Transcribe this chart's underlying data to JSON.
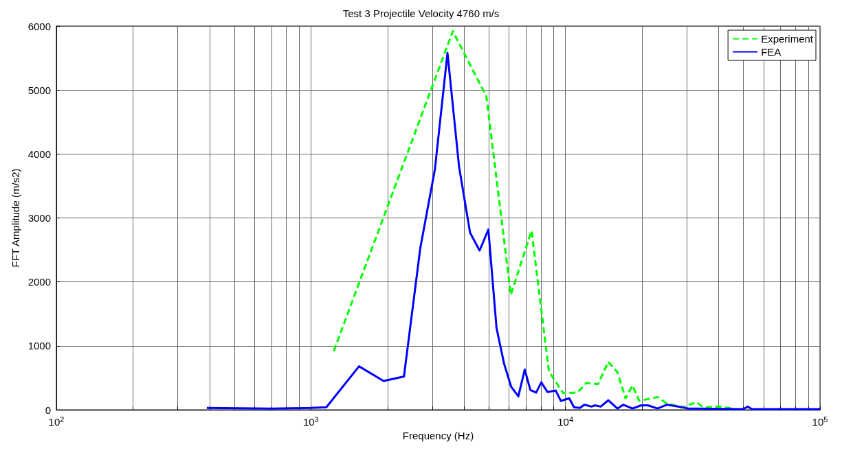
{
  "chart_data": {
    "type": "line",
    "title": "Test 3 Projectile Velocity 4760 m/s",
    "xlabel": "Frequency (Hz)",
    "ylabel": "FFT Amplitude (m/s2)",
    "log": "x",
    "grid": true,
    "legend": "top right",
    "marker": "none",
    "xlim": [
      100,
      100000
    ],
    "ylim": [
      0,
      6000
    ],
    "xticks": [
      {
        "value": 100,
        "label": "10$^{2}$"
      },
      {
        "value": 200,
        "label": null
      },
      {
        "value": 300,
        "label": null
      },
      {
        "value": 400,
        "label": null
      },
      {
        "value": 500,
        "label": null
      },
      {
        "value": 600,
        "label": null
      },
      {
        "value": 700,
        "label": null
      },
      {
        "value": 800,
        "label": null
      },
      {
        "value": 900,
        "label": null
      },
      {
        "value": 1000,
        "label": "10$^{3}$"
      },
      {
        "value": 2000,
        "label": null
      },
      {
        "value": 3000,
        "label": null
      },
      {
        "value": 4000,
        "label": null
      },
      {
        "value": 5000,
        "label": null
      },
      {
        "value": 6000,
        "label": null
      },
      {
        "value": 7000,
        "label": null
      },
      {
        "value": 8000,
        "label": null
      },
      {
        "value": 9000,
        "label": null
      },
      {
        "value": 10000,
        "label": "10$^{4}$"
      },
      {
        "value": 20000,
        "label": null
      },
      {
        "value": 30000,
        "label": null
      },
      {
        "value": 40000,
        "label": null
      },
      {
        "value": 50000,
        "label": null
      },
      {
        "value": 60000,
        "label": null
      },
      {
        "value": 70000,
        "label": null
      },
      {
        "value": 80000,
        "label": null
      },
      {
        "value": 90000,
        "label": null
      },
      {
        "value": 100000,
        "label": "10$^{5}$"
      }
    ],
    "yticks": [
      0,
      1000,
      2000,
      3000,
      4000,
      5000,
      6000
    ],
    "series": [
      {
        "name": "Experiment",
        "color": "#00ff00",
        "line_style": "dashed",
        "x": [
          1230,
          3610,
          4890,
          6100,
          7360,
          8610,
          9800,
          11140,
          12080,
          13420,
          14730,
          15990,
          17220,
          18340,
          19500,
          23000,
          25000,
          28850,
          32660,
          34800,
          40360,
          45700
        ],
        "values": [
          920,
          5920,
          4900,
          1800,
          2800,
          600,
          260,
          270,
          420,
          400,
          750,
          590,
          180,
          380,
          140,
          200,
          100,
          40,
          120,
          40,
          50,
          20
        ]
      },
      {
        "name": "FEA",
        "color": "#0000ff",
        "line_style": "solid",
        "x": [
          390,
          700,
          1000,
          1150,
          1545,
          1930,
          2320,
          2690,
          3070,
          3440,
          3820,
          4220,
          4600,
          4980,
          5360,
          5740,
          6120,
          6530,
          6920,
          7280,
          7670,
          8040,
          8490,
          9160,
          9590,
          10350,
          10800,
          11400,
          11870,
          12650,
          13060,
          13750,
          14740,
          16000,
          16870,
          18340,
          19830,
          21100,
          23000,
          25000,
          27700,
          30300,
          50000,
          52000,
          54000,
          100000
        ],
        "values": [
          30,
          20,
          30,
          40,
          680,
          450,
          520,
          2530,
          3760,
          5580,
          3800,
          2770,
          2490,
          2820,
          1280,
          720,
          360,
          210,
          630,
          310,
          270,
          430,
          280,
          300,
          140,
          180,
          40,
          30,
          80,
          50,
          70,
          50,
          150,
          20,
          80,
          20,
          70,
          70,
          20,
          80,
          50,
          20,
          10,
          50,
          10,
          10
        ]
      }
    ]
  }
}
